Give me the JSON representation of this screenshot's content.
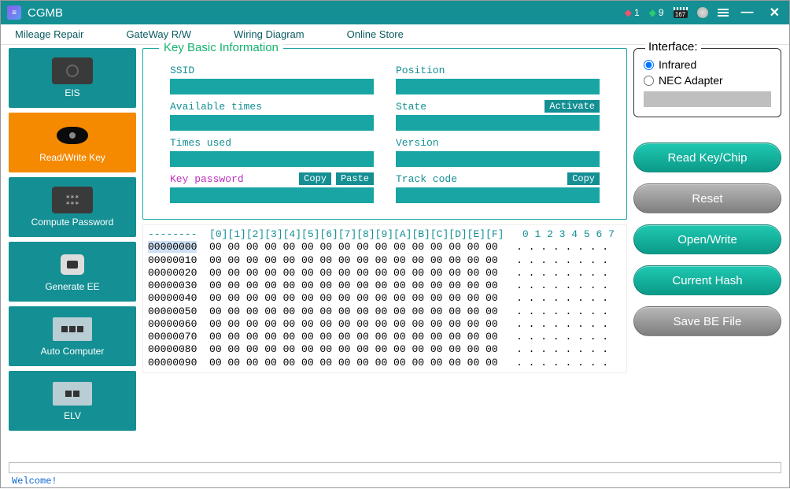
{
  "title": "CGMB",
  "titlebar": {
    "gems_red": "1",
    "gems_green": "9",
    "chip": "167"
  },
  "menus": [
    "Mileage Repair",
    "GateWay R/W",
    "Wiring Diagram",
    "Online Store"
  ],
  "sidebar": [
    {
      "id": "eis",
      "label": "EIS"
    },
    {
      "id": "rwkey",
      "label": "Read/Write Key",
      "active": true
    },
    {
      "id": "cpw",
      "label": "Compute Password"
    },
    {
      "id": "genee",
      "label": "Generate EE"
    },
    {
      "id": "autocomp",
      "label": "Auto Computer"
    },
    {
      "id": "elv",
      "label": "ELV"
    }
  ],
  "kbi": {
    "title": "Key Basic Information",
    "ssid_label": "SSID",
    "position_label": "Position",
    "avail_label": "Available times",
    "state_label": "State",
    "activate_btn": "Activate",
    "times_label": "Times used",
    "version_label": "Version",
    "keypw_label": "Key password",
    "copy_btn": "Copy",
    "paste_btn": "Paste",
    "track_label": "Track code"
  },
  "interface": {
    "title": "Interface:",
    "opt_infrared": "Infrared",
    "opt_nec": "NEC Adapter",
    "selected": "infrared"
  },
  "actions": {
    "read": "Read Key/Chip",
    "reset": "Reset",
    "open": "Open/Write",
    "hash": "Current Hash",
    "save": "Save BE File"
  },
  "hex": {
    "header_cols": "[0][1][2][3][4][5][6][7][8][9][A][B][C][D][E][F]",
    "ascii_header": "0 1 2 3 4 5 6 7",
    "rows": [
      {
        "addr": "00000000",
        "bytes": "00 00 00 00 00 00 00 00 00 00 00 00 00 00 00 00",
        "ascii": ". . . . . . . ."
      },
      {
        "addr": "00000010",
        "bytes": "00 00 00 00 00 00 00 00 00 00 00 00 00 00 00 00",
        "ascii": ". . . . . . . ."
      },
      {
        "addr": "00000020",
        "bytes": "00 00 00 00 00 00 00 00 00 00 00 00 00 00 00 00",
        "ascii": ". . . . . . . ."
      },
      {
        "addr": "00000030",
        "bytes": "00 00 00 00 00 00 00 00 00 00 00 00 00 00 00 00",
        "ascii": ". . . . . . . ."
      },
      {
        "addr": "00000040",
        "bytes": "00 00 00 00 00 00 00 00 00 00 00 00 00 00 00 00",
        "ascii": ". . . . . . . ."
      },
      {
        "addr": "00000050",
        "bytes": "00 00 00 00 00 00 00 00 00 00 00 00 00 00 00 00",
        "ascii": ". . . . . . . ."
      },
      {
        "addr": "00000060",
        "bytes": "00 00 00 00 00 00 00 00 00 00 00 00 00 00 00 00",
        "ascii": ". . . . . . . ."
      },
      {
        "addr": "00000070",
        "bytes": "00 00 00 00 00 00 00 00 00 00 00 00 00 00 00 00",
        "ascii": ". . . . . . . ."
      },
      {
        "addr": "00000080",
        "bytes": "00 00 00 00 00 00 00 00 00 00 00 00 00 00 00 00",
        "ascii": ". . . . . . . ."
      },
      {
        "addr": "00000090",
        "bytes": "00 00 00 00 00 00 00 00 00 00 00 00 00 00 00 00",
        "ascii": ". . . . . . . ."
      }
    ]
  },
  "status": "Welcome!"
}
